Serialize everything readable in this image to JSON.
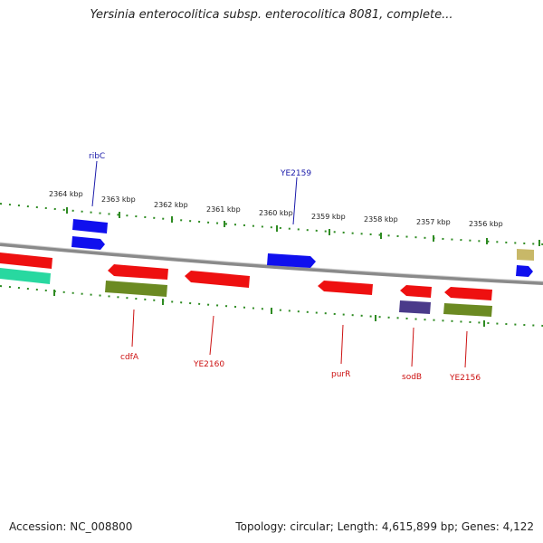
{
  "title": "Yersinia enterocolitica subsp. enterocolitica 8081, complete...",
  "footer": {
    "accession": "Accession: NC_008800",
    "summary": "Topology: circular; Length: 4,615,899 bp; Genes: 4,122"
  },
  "colors": {
    "backbone": "#8a8a8a",
    "ruler": "#2e8b22",
    "forward": "#1010ee",
    "reverse": "#ee1010",
    "olive": "#6b8a22",
    "teal": "#28d8a0",
    "purple": "#4a3a8a",
    "khaki": "#c8b868",
    "label_forward": "#1a1aaa",
    "label_reverse": "#cc1111"
  },
  "ticks": [
    {
      "label": "2364 kbp"
    },
    {
      "label": "2363 kbp"
    },
    {
      "label": "2362 kbp"
    },
    {
      "label": "2361 kbp"
    },
    {
      "label": "2360 kbp"
    },
    {
      "label": "2359 kbp"
    },
    {
      "label": "2358 kbp"
    },
    {
      "label": "2357 kbp"
    },
    {
      "label": "2356 kbp"
    }
  ],
  "genes": [
    {
      "name": "ribC",
      "strand": "forward",
      "color": "forward"
    },
    {
      "name": "YE2159",
      "strand": "forward",
      "color": "forward"
    },
    {
      "name": "cdfA",
      "strand": "reverse",
      "color": "reverse"
    },
    {
      "name": "YE2160",
      "strand": "reverse",
      "color": "reverse"
    },
    {
      "name": "purR",
      "strand": "reverse",
      "color": "reverse"
    },
    {
      "name": "sodB",
      "strand": "reverse",
      "color": "reverse"
    },
    {
      "name": "YE2156",
      "strand": "reverse",
      "color": "reverse"
    }
  ]
}
